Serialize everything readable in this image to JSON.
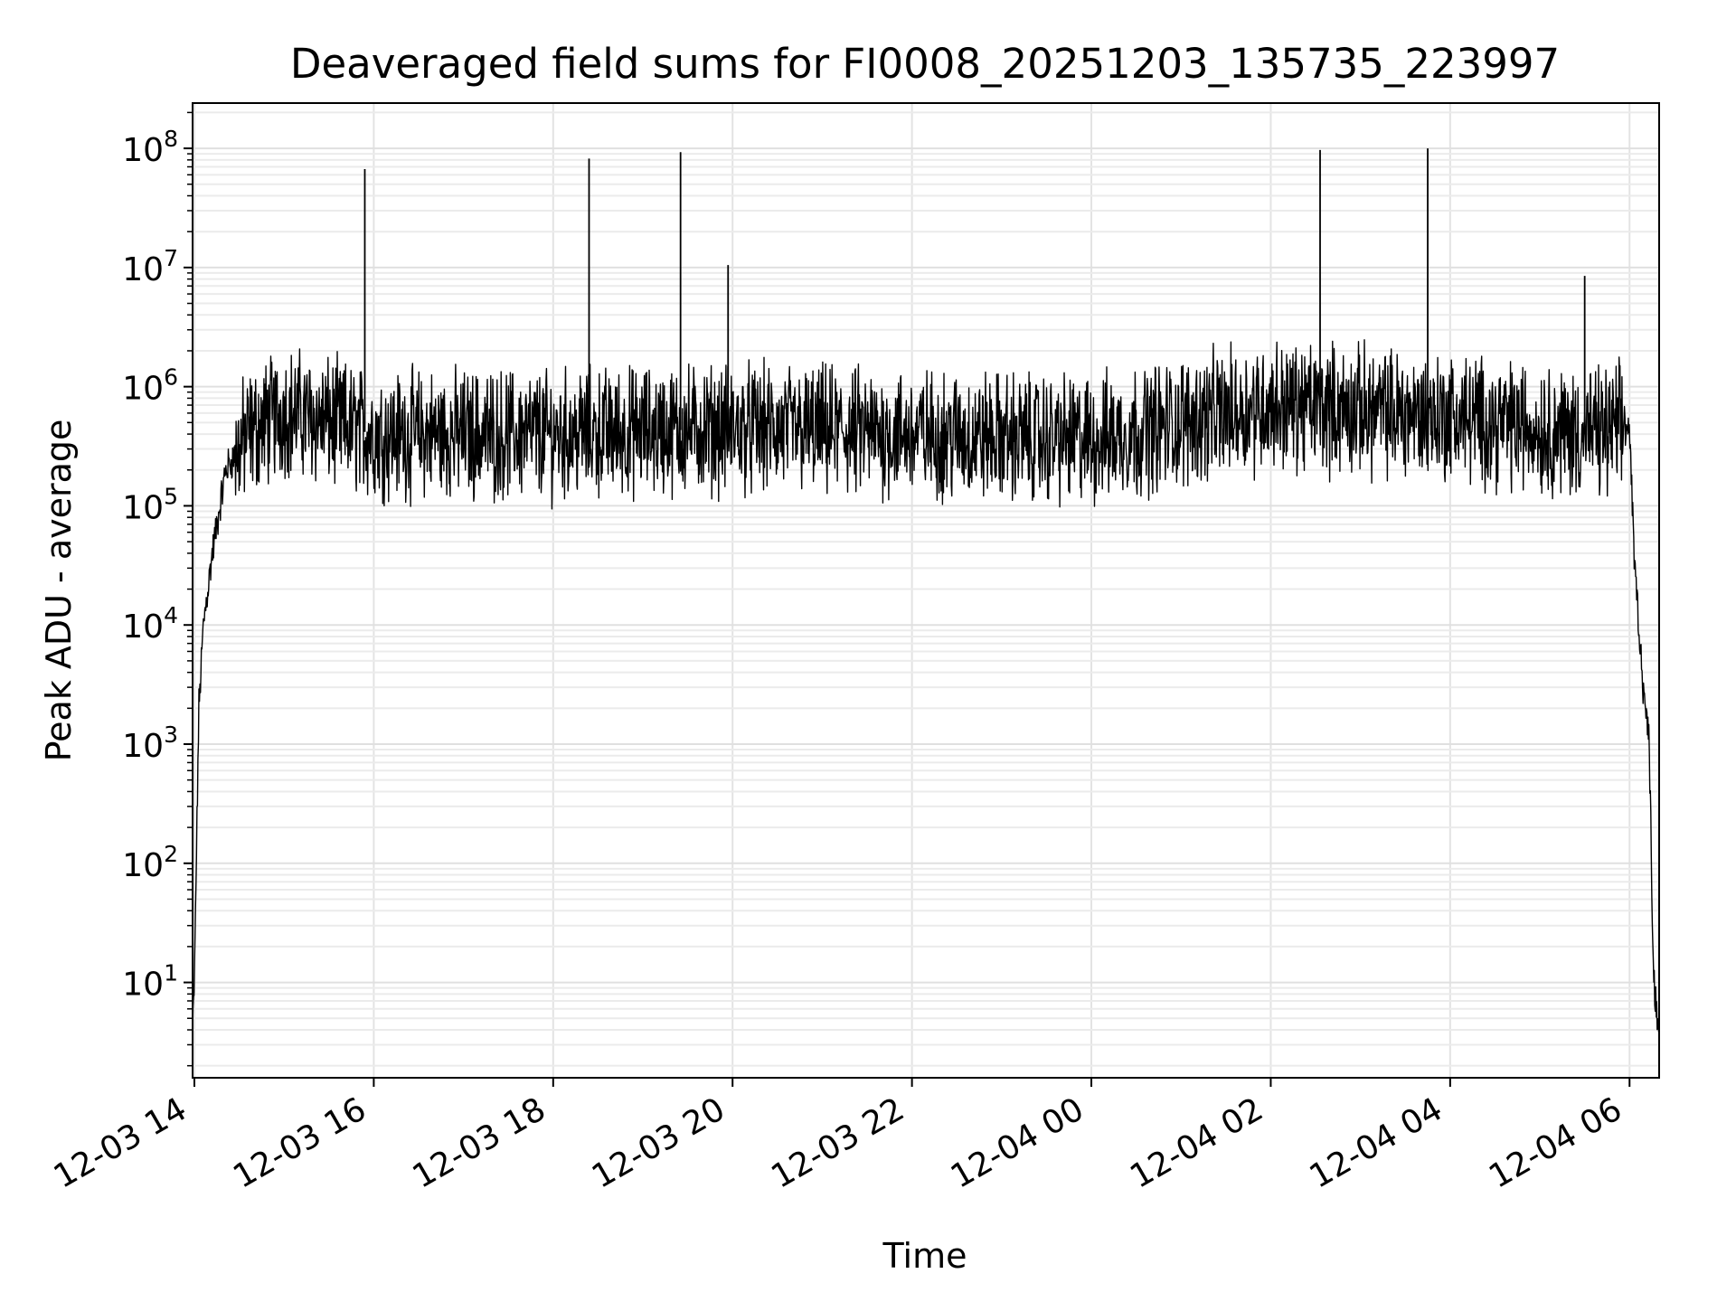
{
  "chart_data": {
    "type": "line",
    "scale_y": "log",
    "title": "Deaveraged field sums for FI0008_20251203_135735_223997",
    "xlabel": "Time",
    "ylabel": "Peak ADU - average",
    "grid": true,
    "legend": "none",
    "xlim_hours": [
      13.98,
      30.33
    ],
    "ylim_log10": [
      0.2,
      8.38
    ],
    "x_ticks": [
      {
        "hours": 14,
        "label": "12-03 14"
      },
      {
        "hours": 16,
        "label": "12-03 16"
      },
      {
        "hours": 18,
        "label": "12-03 18"
      },
      {
        "hours": 20,
        "label": "12-03 20"
      },
      {
        "hours": 22,
        "label": "12-03 22"
      },
      {
        "hours": 24,
        "label": "12-04 00"
      },
      {
        "hours": 26,
        "label": "12-04 02"
      },
      {
        "hours": 28,
        "label": "12-04 04"
      },
      {
        "hours": 30,
        "label": "12-04 06"
      }
    ],
    "y_ticks": [
      {
        "exp": 1,
        "base": "10",
        "sup": "1"
      },
      {
        "exp": 2,
        "base": "10",
        "sup": "2"
      },
      {
        "exp": 3,
        "base": "10",
        "sup": "3"
      },
      {
        "exp": 4,
        "base": "10",
        "sup": "4"
      },
      {
        "exp": 5,
        "base": "10",
        "sup": "5"
      },
      {
        "exp": 6,
        "base": "10",
        "sup": "6"
      },
      {
        "exp": 7,
        "base": "10",
        "sup": "7"
      },
      {
        "exp": 8,
        "base": "10",
        "sup": "8"
      }
    ],
    "series": [
      {
        "name": "deaveraged field sum",
        "color": "#000000",
        "baseline_envelope_log10": [
          [
            13.98,
            0.6
          ],
          [
            14.0,
            1.0
          ],
          [
            14.05,
            3.3
          ],
          [
            14.1,
            4.0
          ],
          [
            14.2,
            4.6
          ],
          [
            14.35,
            5.3
          ],
          [
            14.6,
            5.6
          ],
          [
            15.0,
            5.8
          ],
          [
            16.0,
            5.6
          ],
          [
            18.0,
            5.6
          ],
          [
            20.0,
            5.65
          ],
          [
            22.0,
            5.6
          ],
          [
            24.0,
            5.55
          ],
          [
            26.0,
            5.85
          ],
          [
            28.0,
            5.75
          ],
          [
            29.5,
            5.6
          ],
          [
            30.0,
            5.65
          ],
          [
            30.05,
            4.6
          ],
          [
            30.15,
            3.5
          ],
          [
            30.22,
            3.0
          ],
          [
            30.27,
            1.0
          ],
          [
            30.33,
            0.6
          ]
        ],
        "spikes": [
          {
            "hours": 15.9,
            "value": 67000000
          },
          {
            "hours": 18.4,
            "value": 82000000
          },
          {
            "hours": 19.42,
            "value": 93000000
          },
          {
            "hours": 19.95,
            "value": 10500000
          },
          {
            "hours": 26.55,
            "value": 97000000
          },
          {
            "hours": 27.75,
            "value": 100000000
          },
          {
            "hours": 29.5,
            "value": 8500000
          }
        ]
      }
    ]
  }
}
